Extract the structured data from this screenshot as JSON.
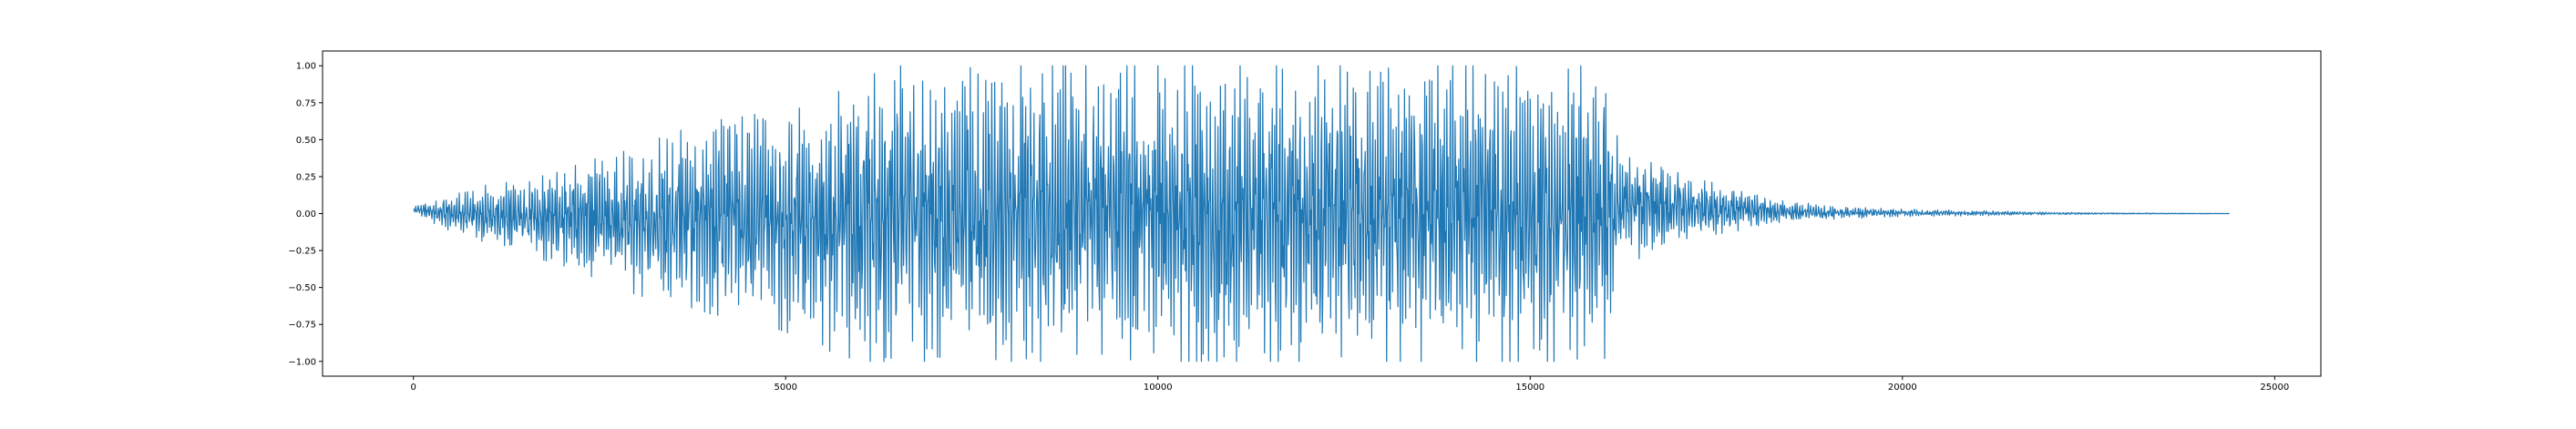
{
  "chart_data": {
    "type": "line",
    "title": "",
    "xlabel": "",
    "ylabel": "",
    "xlim": [
      -1220,
      25620
    ],
    "ylim": [
      -1.1,
      1.1
    ],
    "grid": false,
    "legend": "none",
    "line_color": "#1f77b4",
    "x_ticks": [
      0,
      5000,
      10000,
      15000,
      20000,
      25000
    ],
    "x_tick_labels": [
      "0",
      "5000",
      "10000",
      "15000",
      "20000",
      "25000"
    ],
    "y_ticks": [
      -1.0,
      -0.75,
      -0.5,
      -0.25,
      0.0,
      0.25,
      0.5,
      0.75,
      1.0
    ],
    "y_tick_labels": [
      "−1.00",
      "−0.75",
      "−0.50",
      "−0.25",
      "0.00",
      "0.25",
      "0.50",
      "0.75",
      "1.00"
    ],
    "series": [
      {
        "sample_count": 24400,
        "envelope": {
          "x": [
            0,
            500,
            1000,
            1500,
            2000,
            2500,
            3000,
            3500,
            4000,
            4500,
            5000,
            5500,
            6000,
            6500,
            7000,
            7500,
            8000,
            9000,
            10000,
            11000,
            12000,
            13000,
            14000,
            15000,
            15500,
            16000,
            16200,
            16500,
            17000,
            17500,
            18000,
            18500,
            19000,
            20000,
            21000,
            22000,
            23000,
            24400
          ],
          "upper": [
            0.05,
            0.12,
            0.2,
            0.25,
            0.3,
            0.38,
            0.45,
            0.55,
            0.62,
            0.68,
            0.75,
            0.82,
            0.95,
            1.0,
            1.0,
            1.0,
            1.0,
            1.0,
            1.0,
            1.0,
            1.0,
            1.0,
            1.0,
            1.0,
            1.0,
            1.0,
            0.45,
            0.42,
            0.3,
            0.2,
            0.14,
            0.09,
            0.05,
            0.03,
            0.02,
            0.01,
            0.005,
            0.002
          ],
          "lower": [
            0.0,
            -0.12,
            -0.2,
            -0.28,
            -0.35,
            -0.45,
            -0.55,
            -0.62,
            -0.68,
            -0.72,
            -0.8,
            -0.92,
            -1.0,
            -1.0,
            -1.0,
            -1.0,
            -1.0,
            -1.0,
            -1.0,
            -1.0,
            -1.0,
            -1.0,
            -1.0,
            -1.0,
            -1.0,
            -0.98,
            -0.35,
            -0.3,
            -0.22,
            -0.14,
            -0.1,
            -0.06,
            -0.04,
            -0.02,
            -0.015,
            -0.008,
            -0.004,
            -0.002
          ]
        }
      }
    ]
  }
}
